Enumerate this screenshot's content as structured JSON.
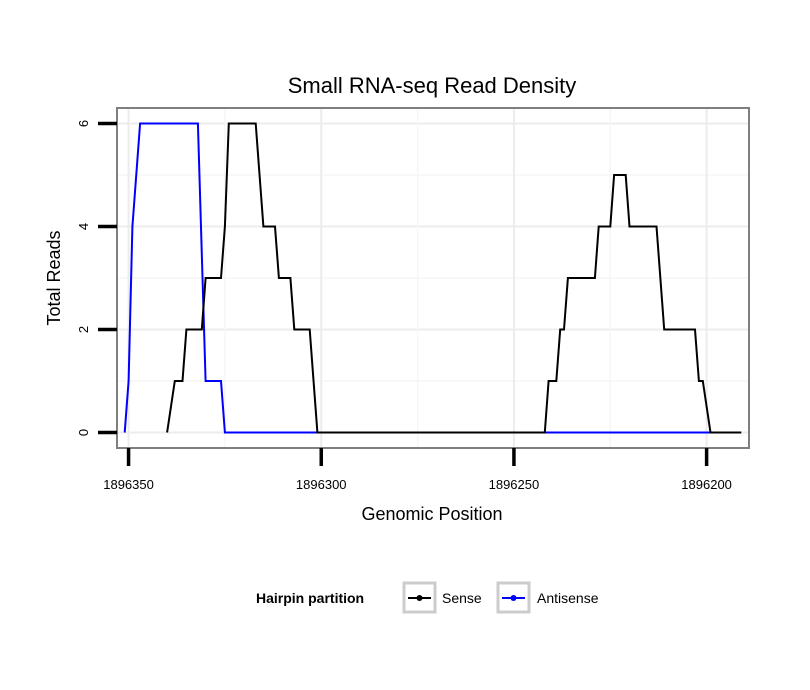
{
  "chart_data": {
    "type": "line",
    "title": "Small RNA-seq Read Density",
    "xlabel": "Genomic Position",
    "ylabel": "Total Reads",
    "x_reversed": true,
    "xlim": [
      1896353,
      1896189
    ],
    "ylim": [
      -0.3,
      6.3
    ],
    "x_ticks": [
      1896350,
      1896300,
      1896250,
      1896200
    ],
    "x_tick_labels": [
      "1896350",
      "1896300",
      "1896250",
      "1896200"
    ],
    "y_ticks": [
      0,
      2,
      4,
      6
    ],
    "y_tick_labels": [
      "0",
      "2",
      "4",
      "6"
    ],
    "grid": true,
    "legend": {
      "title": "Hairpin partition",
      "position": "bottom",
      "entries": [
        "Sense",
        "Antisense"
      ]
    },
    "series": [
      {
        "name": "Sense",
        "color": "#000000",
        "points": [
          [
            1896340,
            0
          ],
          [
            1896338,
            1
          ],
          [
            1896336,
            1
          ],
          [
            1896335,
            2
          ],
          [
            1896331,
            2
          ],
          [
            1896330,
            3
          ],
          [
            1896326,
            3
          ],
          [
            1896325,
            4
          ],
          [
            1896324,
            6
          ],
          [
            1896317,
            6
          ],
          [
            1896315,
            4
          ],
          [
            1896312,
            4
          ],
          [
            1896311,
            3
          ],
          [
            1896308,
            3
          ],
          [
            1896307,
            2
          ],
          [
            1896303,
            2
          ],
          [
            1896301,
            0
          ],
          [
            1896242,
            0
          ],
          [
            1896241,
            1
          ],
          [
            1896239,
            1
          ],
          [
            1896238,
            2
          ],
          [
            1896237,
            2
          ],
          [
            1896236,
            3
          ],
          [
            1896229,
            3
          ],
          [
            1896228,
            4
          ],
          [
            1896225,
            4
          ],
          [
            1896224,
            5
          ],
          [
            1896221,
            5
          ],
          [
            1896220,
            4
          ],
          [
            1896213,
            4
          ],
          [
            1896211,
            2
          ],
          [
            1896203,
            2
          ],
          [
            1896202,
            1
          ],
          [
            1896201,
            1
          ],
          [
            1896199,
            0
          ],
          [
            1896191,
            0
          ]
        ]
      },
      {
        "name": "Antisense",
        "color": "#0000ff",
        "points": [
          [
            1896351,
            0
          ],
          [
            1896350,
            1
          ],
          [
            1896349,
            4
          ],
          [
            1896347,
            6
          ],
          [
            1896332,
            6
          ],
          [
            1896330,
            1
          ],
          [
            1896326,
            1
          ],
          [
            1896325,
            0
          ],
          [
            1896299,
            0
          ],
          [
            1896241,
            0
          ],
          [
            1896199,
            0
          ]
        ]
      }
    ]
  }
}
